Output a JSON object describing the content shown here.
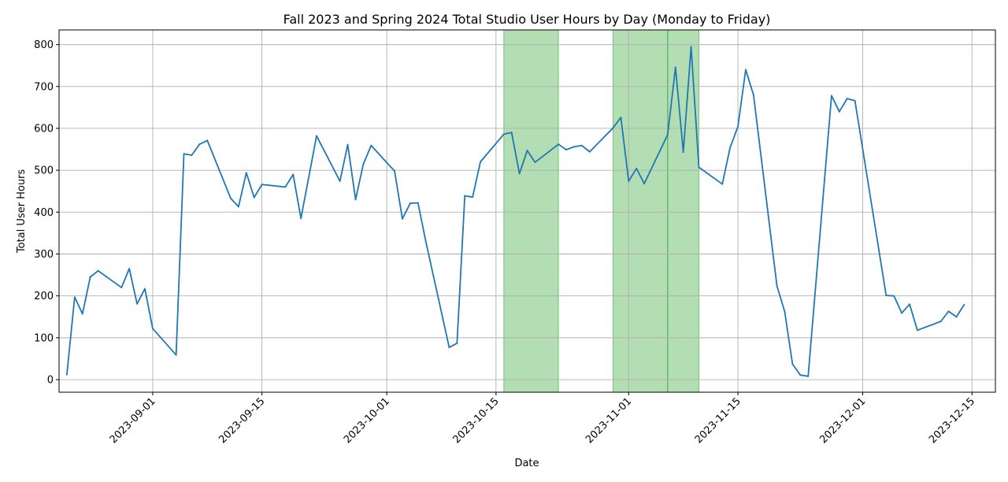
{
  "chart_data": {
    "type": "line",
    "title": "Fall 2023 and Spring 2024 Total Studio User Hours by Day (Monday to Friday)",
    "xlabel": "Date",
    "ylabel": "Total User Hours",
    "xlim": [
      "2023-08-20",
      "2023-12-18"
    ],
    "ylim": [
      -30,
      835
    ],
    "yticks": [
      0,
      100,
      200,
      300,
      400,
      500,
      600,
      700,
      800
    ],
    "xticks": [
      "2023-09-01",
      "2023-09-15",
      "2023-10-01",
      "2023-10-15",
      "2023-11-01",
      "2023-11-15",
      "2023-12-01",
      "2023-12-15"
    ],
    "grid": true,
    "line_color": "#1f77b4",
    "highlight_color": "#2ca02c",
    "highlight_ranges": [
      [
        "2023-10-16",
        "2023-10-23"
      ],
      [
        "2023-10-30",
        "2023-11-06"
      ],
      [
        "2023-11-06",
        "2023-11-10"
      ]
    ],
    "series": [
      {
        "points": [
          [
            "2023-08-21",
            12
          ],
          [
            "2023-08-22",
            197
          ],
          [
            "2023-08-23",
            157
          ],
          [
            "2023-08-24",
            245
          ],
          [
            "2023-08-25",
            260
          ],
          [
            "2023-08-28",
            220
          ],
          [
            "2023-08-29",
            265
          ],
          [
            "2023-08-30",
            181
          ],
          [
            "2023-08-31",
            217
          ],
          [
            "2023-09-01",
            122
          ],
          [
            "2023-09-04",
            59
          ],
          [
            "2023-09-05",
            539
          ],
          [
            "2023-09-06",
            536
          ],
          [
            "2023-09-07",
            562
          ],
          [
            "2023-09-08",
            571
          ],
          [
            "2023-09-11",
            433
          ],
          [
            "2023-09-12",
            413
          ],
          [
            "2023-09-13",
            494
          ],
          [
            "2023-09-14",
            435
          ],
          [
            "2023-09-15",
            466
          ],
          [
            "2023-09-18",
            460
          ],
          [
            "2023-09-19",
            490
          ],
          [
            "2023-09-20",
            385
          ],
          [
            "2023-09-22",
            582
          ],
          [
            "2023-09-25",
            474
          ],
          [
            "2023-09-26",
            561
          ],
          [
            "2023-09-27",
            430
          ],
          [
            "2023-09-28",
            515
          ],
          [
            "2023-09-29",
            559
          ],
          [
            "2023-10-02",
            498
          ],
          [
            "2023-10-03",
            384
          ],
          [
            "2023-10-04",
            421
          ],
          [
            "2023-10-05",
            422
          ],
          [
            "2023-10-06",
            330
          ],
          [
            "2023-10-09",
            77
          ],
          [
            "2023-10-10",
            87
          ],
          [
            "2023-10-11",
            439
          ],
          [
            "2023-10-12",
            436
          ],
          [
            "2023-10-13",
            520
          ],
          [
            "2023-10-16",
            586
          ],
          [
            "2023-10-17",
            590
          ],
          [
            "2023-10-18",
            492
          ],
          [
            "2023-10-19",
            547
          ],
          [
            "2023-10-20",
            519
          ],
          [
            "2023-10-23",
            562
          ],
          [
            "2023-10-24",
            549
          ],
          [
            "2023-10-25",
            556
          ],
          [
            "2023-10-26",
            559
          ],
          [
            "2023-10-27",
            544
          ],
          [
            "2023-10-30",
            601
          ],
          [
            "2023-10-31",
            626
          ],
          [
            "2023-11-01",
            474
          ],
          [
            "2023-11-02",
            504
          ],
          [
            "2023-11-03",
            468
          ],
          [
            "2023-11-06",
            585
          ],
          [
            "2023-11-07",
            746
          ],
          [
            "2023-11-08",
            543
          ],
          [
            "2023-11-09",
            795
          ],
          [
            "2023-11-10",
            507
          ],
          [
            "2023-11-13",
            467
          ],
          [
            "2023-11-14",
            554
          ],
          [
            "2023-11-15",
            604
          ],
          [
            "2023-11-16",
            740
          ],
          [
            "2023-11-17",
            680
          ],
          [
            "2023-11-20",
            224
          ],
          [
            "2023-11-21",
            162
          ],
          [
            "2023-11-22",
            37
          ],
          [
            "2023-11-23",
            11
          ],
          [
            "2023-11-24",
            8
          ],
          [
            "2023-11-27",
            678
          ],
          [
            "2023-11-28",
            640
          ],
          [
            "2023-11-29",
            671
          ],
          [
            "2023-11-30",
            666
          ],
          [
            "2023-12-04",
            201
          ],
          [
            "2023-12-05",
            200
          ],
          [
            "2023-12-06",
            159
          ],
          [
            "2023-12-07",
            180
          ],
          [
            "2023-12-08",
            118
          ],
          [
            "2023-12-11",
            139
          ],
          [
            "2023-12-12",
            163
          ],
          [
            "2023-12-13",
            150
          ],
          [
            "2023-12-14",
            179
          ]
        ]
      }
    ]
  }
}
